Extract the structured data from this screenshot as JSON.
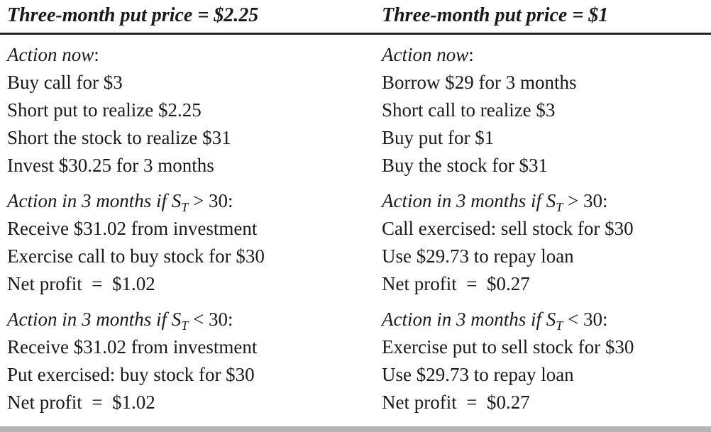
{
  "header": {
    "left": "Three-month put price = $2.25",
    "right": "Three-month put price = $1"
  },
  "left": {
    "now": {
      "heading": "Action now",
      "colon": ":",
      "items": [
        "Buy call for $3",
        "Short put to realize $2.25",
        "Short the stock to realize $31",
        "Invest $30.25 for 3 months"
      ]
    },
    "above": {
      "heading_prefix": "Action in 3 months if S",
      "heading_sub": "T",
      "heading_suffix": " > 30:",
      "items": [
        "Receive $31.02 from investment",
        "Exercise call to buy stock for $30",
        "Net profit  =  $1.02"
      ]
    },
    "below": {
      "heading_prefix": "Action in 3 months if S",
      "heading_sub": "T",
      "heading_suffix": " < 30:",
      "items": [
        "Receive $31.02 from investment",
        "Put exercised: buy stock for $30",
        "Net profit  =  $1.02"
      ]
    }
  },
  "right": {
    "now": {
      "heading": "Action now",
      "colon": ":",
      "items": [
        "Borrow $29 for 3 months",
        "Short call to realize $3",
        "Buy put for $1",
        "Buy the stock for $31"
      ]
    },
    "above": {
      "heading_prefix": "Action in 3 months if S",
      "heading_sub": "T",
      "heading_suffix": " > 30:",
      "items": [
        "Call exercised: sell stock for $30",
        "Use $29.73 to repay loan",
        "Net profit  =  $0.27"
      ]
    },
    "below": {
      "heading_prefix": "Action in 3 months if S",
      "heading_sub": "T",
      "heading_suffix": " < 30:",
      "items": [
        "Exercise put to sell stock for $30",
        "Use $29.73 to repay loan",
        "Net profit  =  $0.27"
      ]
    }
  }
}
